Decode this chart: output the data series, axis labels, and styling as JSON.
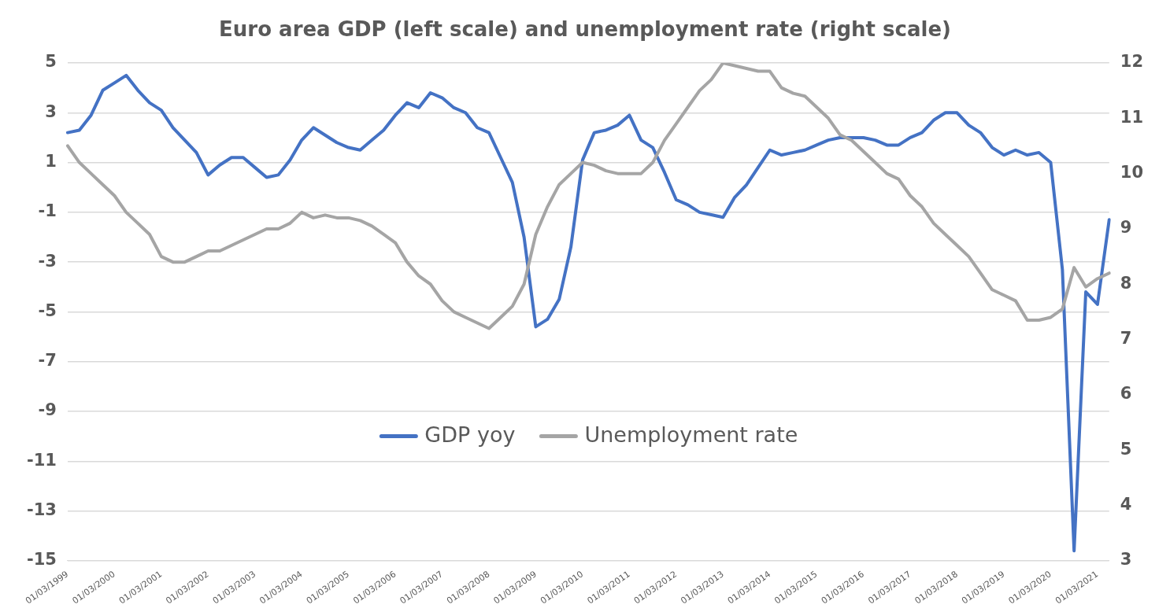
{
  "chart_data": {
    "type": "line",
    "title": "Euro area GDP (left scale) and unemployment rate (right scale)",
    "categories": [
      "01/03/1999",
      null,
      null,
      null,
      "01/03/2000",
      null,
      null,
      null,
      "01/03/2001",
      null,
      null,
      null,
      "01/03/2002",
      null,
      null,
      null,
      "01/03/2003",
      null,
      null,
      null,
      "01/03/2004",
      null,
      null,
      null,
      "01/03/2005",
      null,
      null,
      null,
      "01/03/2006",
      null,
      null,
      null,
      "01/03/2007",
      null,
      null,
      null,
      "01/03/2008",
      null,
      null,
      null,
      "01/03/2009",
      null,
      null,
      null,
      "01/03/2010",
      null,
      null,
      null,
      "01/03/2011",
      null,
      null,
      null,
      "01/03/2012",
      null,
      null,
      null,
      "01/03/2013",
      null,
      null,
      null,
      "01/03/2014",
      null,
      null,
      null,
      "01/03/2015",
      null,
      null,
      null,
      "01/03/2016",
      null,
      null,
      null,
      "01/03/2017",
      null,
      null,
      null,
      "01/03/2018",
      null,
      null,
      null,
      "01/03/2019",
      null,
      null,
      null,
      "01/03/2020",
      null,
      null,
      null,
      "01/03/2021",
      null
    ],
    "series": [
      {
        "name": "GDP yoy",
        "color": "#4472c4",
        "values": [
          2.2,
          2.3,
          2.9,
          3.9,
          4.2,
          4.5,
          3.9,
          3.4,
          3.1,
          2.4,
          1.9,
          1.4,
          0.5,
          0.9,
          1.2,
          1.2,
          0.8,
          0.4,
          0.5,
          1.1,
          1.9,
          2.4,
          2.1,
          1.8,
          1.6,
          1.5,
          1.9,
          2.3,
          2.9,
          3.4,
          3.2,
          3.8,
          3.6,
          3.2,
          3.0,
          2.4,
          2.2,
          1.2,
          0.2,
          -2.0,
          -5.6,
          -5.3,
          -4.5,
          -2.4,
          1.1,
          2.2,
          2.3,
          2.5,
          2.9,
          1.9,
          1.6,
          0.6,
          -0.5,
          -0.7,
          -1.0,
          -1.1,
          -1.2,
          -0.4,
          0.1,
          0.8,
          1.5,
          1.3,
          1.4,
          1.5,
          1.7,
          1.9,
          2.0,
          2.0,
          2.0,
          1.9,
          1.7,
          1.7,
          2.0,
          2.2,
          2.7,
          3.0,
          3.0,
          2.5,
          2.2,
          1.6,
          1.3,
          1.5,
          1.3,
          1.4,
          1.0,
          -3.3,
          -14.6,
          -4.2,
          -4.7,
          -1.3
        ]
      },
      {
        "name": "Unemployment rate",
        "color": "#a5a5a5",
        "axis": "y2",
        "values": [
          10.5,
          10.2,
          10.0,
          9.8,
          9.6,
          9.3,
          9.1,
          8.9,
          8.5,
          8.4,
          8.4,
          8.5,
          8.6,
          8.6,
          8.7,
          8.8,
          8.9,
          9.0,
          9.0,
          9.1,
          9.3,
          9.2,
          9.25,
          9.2,
          9.2,
          9.15,
          9.05,
          8.9,
          8.75,
          8.4,
          8.15,
          8.0,
          7.7,
          7.5,
          7.4,
          7.3,
          7.2,
          7.4,
          7.6,
          8.0,
          8.9,
          9.4,
          9.8,
          10.0,
          10.2,
          10.15,
          10.05,
          10.0,
          10.0,
          10.0,
          10.2,
          10.6,
          10.9,
          11.2,
          11.5,
          11.7,
          12.0,
          11.95,
          11.9,
          11.85,
          11.85,
          11.55,
          11.45,
          11.4,
          11.2,
          11.0,
          10.7,
          10.6,
          10.4,
          10.2,
          10.0,
          9.9,
          9.6,
          9.4,
          9.1,
          8.9,
          8.7,
          8.5,
          8.2,
          7.9,
          7.8,
          7.7,
          7.35,
          7.35,
          7.4,
          7.55,
          8.3,
          7.95,
          8.1,
          8.2
        ]
      }
    ],
    "ylim": [
      -15,
      5
    ],
    "yticks": [
      -15,
      -13,
      -11,
      -9,
      -7,
      -5,
      -3,
      -1,
      1,
      3,
      5
    ],
    "y2lim": [
      3,
      12
    ],
    "y2ticks": [
      3,
      4,
      5,
      6,
      7,
      8,
      9,
      10,
      11,
      12
    ],
    "grid": "y",
    "legend": "center",
    "marker": "none",
    "line_style": "solid"
  }
}
